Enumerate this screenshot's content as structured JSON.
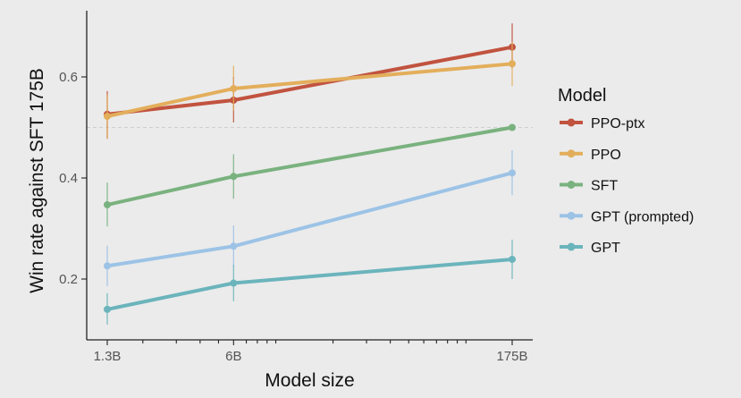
{
  "chart_data": {
    "type": "line",
    "xlabel": "Model size",
    "ylabel": "Win rate against SFT 175B",
    "x_scale": "log",
    "x_ticks": [
      {
        "label": "1.3B",
        "value": 1.3
      },
      {
        "label": "6B",
        "value": 6
      },
      {
        "label": "175B",
        "value": 175
      }
    ],
    "y_ticks": [
      0.2,
      0.4,
      0.6
    ],
    "ylim": [
      0.08,
      0.73
    ],
    "xlim": [
      1.1,
      200
    ],
    "reference_line_y": 0.5,
    "grid": false,
    "legend": {
      "title": "Model",
      "position": "right"
    },
    "series": [
      {
        "name": "PPO-ptx",
        "color": "#c1533f",
        "points": [
          {
            "x": 1.3,
            "y": 0.526,
            "lo": 0.478,
            "hi": 0.572
          },
          {
            "x": 6,
            "y": 0.554,
            "lo": 0.51,
            "hi": 0.6
          },
          {
            "x": 175,
            "y": 0.659,
            "lo": 0.617,
            "hi": 0.706
          }
        ]
      },
      {
        "name": "PPO",
        "color": "#e3ae5b",
        "points": [
          {
            "x": 1.3,
            "y": 0.522,
            "lo": 0.477,
            "hi": 0.565
          },
          {
            "x": 6,
            "y": 0.577,
            "lo": 0.533,
            "hi": 0.622
          },
          {
            "x": 175,
            "y": 0.626,
            "lo": 0.582,
            "hi": 0.67
          }
        ]
      },
      {
        "name": "SFT",
        "color": "#7ab27f",
        "points": [
          {
            "x": 1.3,
            "y": 0.347,
            "lo": 0.304,
            "hi": 0.391
          },
          {
            "x": 6,
            "y": 0.403,
            "lo": 0.359,
            "hi": 0.447
          },
          {
            "x": 175,
            "y": 0.5,
            "lo": 0.497,
            "hi": 0.503
          }
        ]
      },
      {
        "name": "GPT (prompted)",
        "color": "#9cc3e6",
        "points": [
          {
            "x": 1.3,
            "y": 0.226,
            "lo": 0.186,
            "hi": 0.266
          },
          {
            "x": 6,
            "y": 0.265,
            "lo": 0.224,
            "hi": 0.306
          },
          {
            "x": 175,
            "y": 0.41,
            "lo": 0.366,
            "hi": 0.455
          }
        ]
      },
      {
        "name": "GPT",
        "color": "#6bb4bc",
        "points": [
          {
            "x": 1.3,
            "y": 0.14,
            "lo": 0.11,
            "hi": 0.172
          },
          {
            "x": 6,
            "y": 0.192,
            "lo": 0.156,
            "hi": 0.228
          },
          {
            "x": 175,
            "y": 0.239,
            "lo": 0.2,
            "hi": 0.278
          }
        ]
      }
    ]
  }
}
